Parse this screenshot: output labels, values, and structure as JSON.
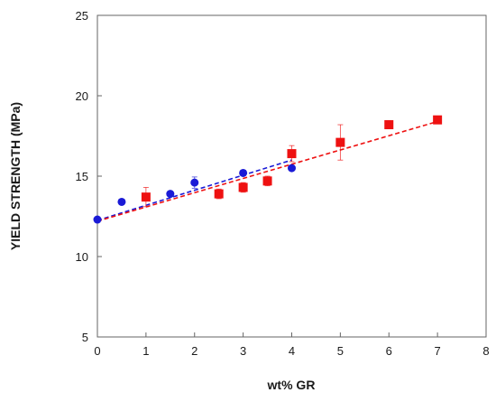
{
  "chart_data": {
    "type": "scatter",
    "xlabel": "wt% GR",
    "ylabel": "YIELD STRENGTH (MPa)",
    "xlim": [
      0,
      8
    ],
    "ylim": [
      5,
      25
    ],
    "x_ticks": [
      0,
      1,
      2,
      3,
      4,
      5,
      6,
      7,
      8
    ],
    "y_ticks": [
      5,
      10,
      15,
      20,
      25
    ],
    "x_tick_labels": [
      "0",
      "1",
      "2",
      "3",
      "4",
      "5",
      "6",
      "7",
      "8"
    ],
    "y_tick_labels": [
      "5",
      "10",
      "15",
      "20",
      "25"
    ],
    "grid": false,
    "series": [
      {
        "marker": "circle",
        "color": "#1a1ad6",
        "x": [
          0,
          0.5,
          1.5,
          2,
          3,
          4
        ],
        "y": [
          12.3,
          13.4,
          13.9,
          14.6,
          15.2,
          15.5
        ],
        "error": [
          0,
          0,
          0,
          0.35,
          0,
          0
        ],
        "trendline": {
          "x": [
            0,
            4
          ],
          "y": [
            12.25,
            16.0
          ],
          "style": "dashed"
        }
      },
      {
        "marker": "square",
        "color": "#ee1111",
        "x": [
          1,
          2.5,
          3,
          3.5,
          4,
          5,
          6,
          7
        ],
        "y": [
          13.7,
          13.9,
          14.3,
          14.7,
          16.4,
          17.1,
          18.2,
          18.5
        ],
        "error": [
          0.6,
          0.3,
          0.3,
          0.3,
          0.5,
          1.1,
          0,
          0
        ],
        "trendline": {
          "x": [
            0,
            7
          ],
          "y": [
            12.2,
            18.4
          ],
          "style": "dashed"
        }
      }
    ]
  }
}
